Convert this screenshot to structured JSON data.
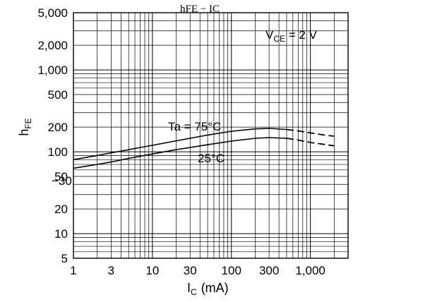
{
  "chart_data": {
    "type": "line",
    "title": "hFE − IC",
    "xlabel": {
      "main": "I",
      "sub": "C",
      "unit": "(mA)"
    },
    "ylabel": {
      "main": "h",
      "sub": "FE"
    },
    "xscale": "log",
    "yscale": "log",
    "xlim": [
      1,
      3000
    ],
    "ylim": [
      5,
      5000
    ],
    "grid": true,
    "x_ticks": [
      1,
      3,
      10,
      30,
      100,
      300,
      1000
    ],
    "x_tick_labels": [
      "1",
      "3",
      "10",
      "30",
      "100",
      "300",
      "1,000"
    ],
    "y_ticks": [
      5,
      10,
      20,
      50,
      100,
      200,
      500,
      1000,
      2000,
      5000
    ],
    "y_tick_labels": [
      "5",
      "10",
      "20",
      "50",
      "100",
      "200",
      "500",
      "1,000",
      "2,000",
      "5,000"
    ],
    "condition": {
      "main": "V",
      "sub": "CE",
      "rest": " = 2 V"
    },
    "series": [
      {
        "name": "Ta = 75°C",
        "x": [
          1,
          2,
          3,
          5,
          10,
          20,
          50,
          100,
          200,
          300,
          500,
          700,
          1000,
          1500,
          2000
        ],
        "y": [
          80,
          90,
          97,
          106,
          120,
          136,
          160,
          178,
          190,
          193,
          187,
          180,
          170,
          160,
          155
        ],
        "dash_from_x": 500
      },
      {
        "name": "25°C",
        "x": [
          1,
          2,
          3,
          5,
          10,
          20,
          50,
          100,
          200,
          300,
          500,
          700,
          1000,
          1500,
          2000
        ],
        "y": [
          63,
          70,
          75,
          83,
          94,
          106,
          122,
          135,
          146,
          149,
          146,
          139,
          130,
          123,
          118
        ],
        "dash_from_x": 500
      }
    ],
    "annotations": [
      "Ta = 75°C",
      "25°C",
      "−30"
    ]
  }
}
